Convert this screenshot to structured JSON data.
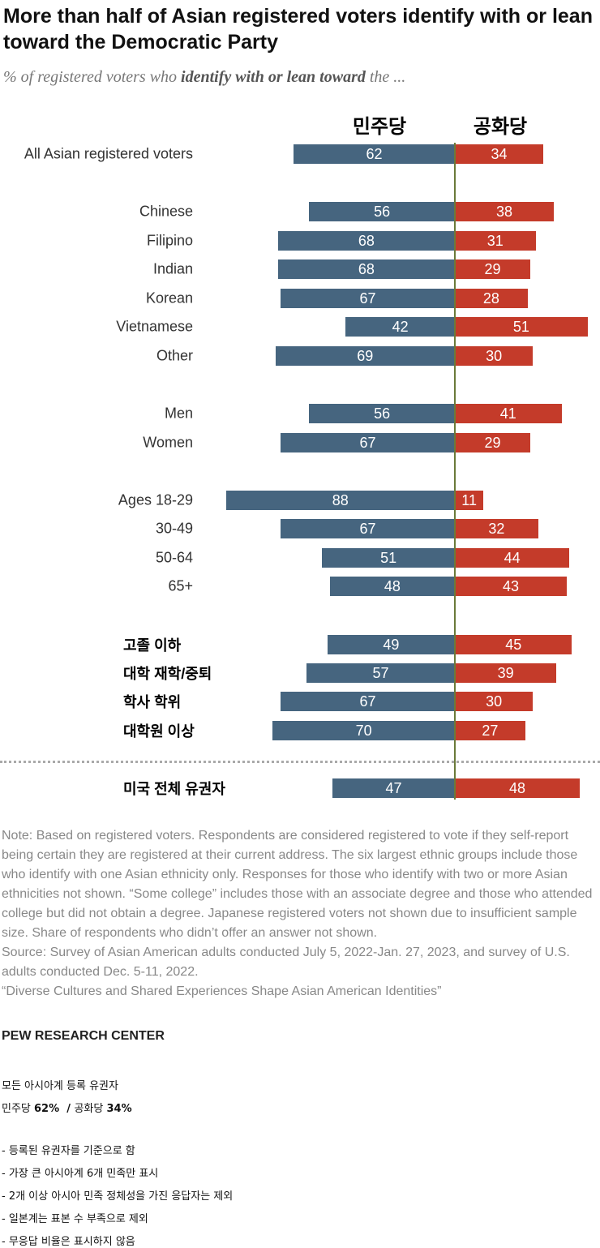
{
  "title": "More than half of Asian registered voters identify with or lean toward the Democratic Party",
  "subtitle": {
    "pre": "% of registered voters who ",
    "bold": "identify with or lean toward",
    "post": " the ..."
  },
  "colors": {
    "democrat": "#46657f",
    "republican": "#c43b2a",
    "axis": "#6b7a3a"
  },
  "chart_data": {
    "type": "bar",
    "orientation": "diverging-horizontal",
    "series": [
      {
        "name": "민주당"
      },
      {
        "name": "공화당"
      }
    ],
    "rows": [
      {
        "label": "All Asian registered voters",
        "dem": 62,
        "rep": 34,
        "ko": false
      },
      {
        "label": "Chinese",
        "dem": 56,
        "rep": 38,
        "ko": false
      },
      {
        "label": "Filipino",
        "dem": 68,
        "rep": 31,
        "ko": false
      },
      {
        "label": "Indian",
        "dem": 68,
        "rep": 29,
        "ko": false
      },
      {
        "label": "Korean",
        "dem": 67,
        "rep": 28,
        "ko": false
      },
      {
        "label": "Vietnamese",
        "dem": 42,
        "rep": 51,
        "ko": false
      },
      {
        "label": "Other",
        "dem": 69,
        "rep": 30,
        "ko": false
      },
      {
        "label": "Men",
        "dem": 56,
        "rep": 41,
        "ko": false
      },
      {
        "label": "Women",
        "dem": 67,
        "rep": 29,
        "ko": false
      },
      {
        "label": "Ages 18-29",
        "dem": 88,
        "rep": 11,
        "ko": false
      },
      {
        "label": "30-49",
        "dem": 67,
        "rep": 32,
        "ko": false
      },
      {
        "label": "50-64",
        "dem": 51,
        "rep": 44,
        "ko": false
      },
      {
        "label": "65+",
        "dem": 48,
        "rep": 43,
        "ko": false
      },
      {
        "label": "고졸 이하",
        "dem": 49,
        "rep": 45,
        "ko": true
      },
      {
        "label": "대학 재학/중퇴",
        "dem": 57,
        "rep": 39,
        "ko": true
      },
      {
        "label": "학사 학위",
        "dem": 67,
        "rep": 30,
        "ko": true
      },
      {
        "label": "대학원 이상",
        "dem": 70,
        "rep": 27,
        "ko": true
      },
      {
        "label": "미국 전체 유권자",
        "dem": 47,
        "rep": 48,
        "ko": true
      }
    ]
  },
  "note": "Note: Based on registered voters. Respondents are considered registered to vote if they self-report being certain they are registered at their current address. The six largest ethnic groups include those who identify with one Asian ethnicity only. Responses for those who identify with two or more Asian ethnicities not shown. “Some college” includes those with an associate degree and those who attended college but did not obtain a degree. Japanese registered voters not shown due to insufficient sample size. Share of respondents who didn’t offer an answer not shown.",
  "source": "Source: Survey of Asian American adults conducted July 5, 2022-Jan. 27, 2023, and survey of U.S. adults conducted Dec. 5-11, 2022.",
  "report": "“Diverse Cultures and Shared Experiences Shape Asian American Identities”",
  "brand": "PEW RESEARCH CENTER",
  "summary": {
    "heading": "모든 아시아계 등록 유권자",
    "dem_label": "민주당 ",
    "dem_val": "62%",
    "sep": "  / ",
    "rep_label": "공화당 ",
    "rep_val": "34%",
    "bullets": [
      "- 등록된 유권자를 기준으로 함",
      "- 가장 큰 아시아계 6개 민족만 표시",
      "- 2개 이상 아시아 민족 정체성을 가진 응답자는 제외",
      "- 일본계는 표본 수 부족으로 제외",
      "- 무응답 비율은 표시하지 않음"
    ]
  }
}
